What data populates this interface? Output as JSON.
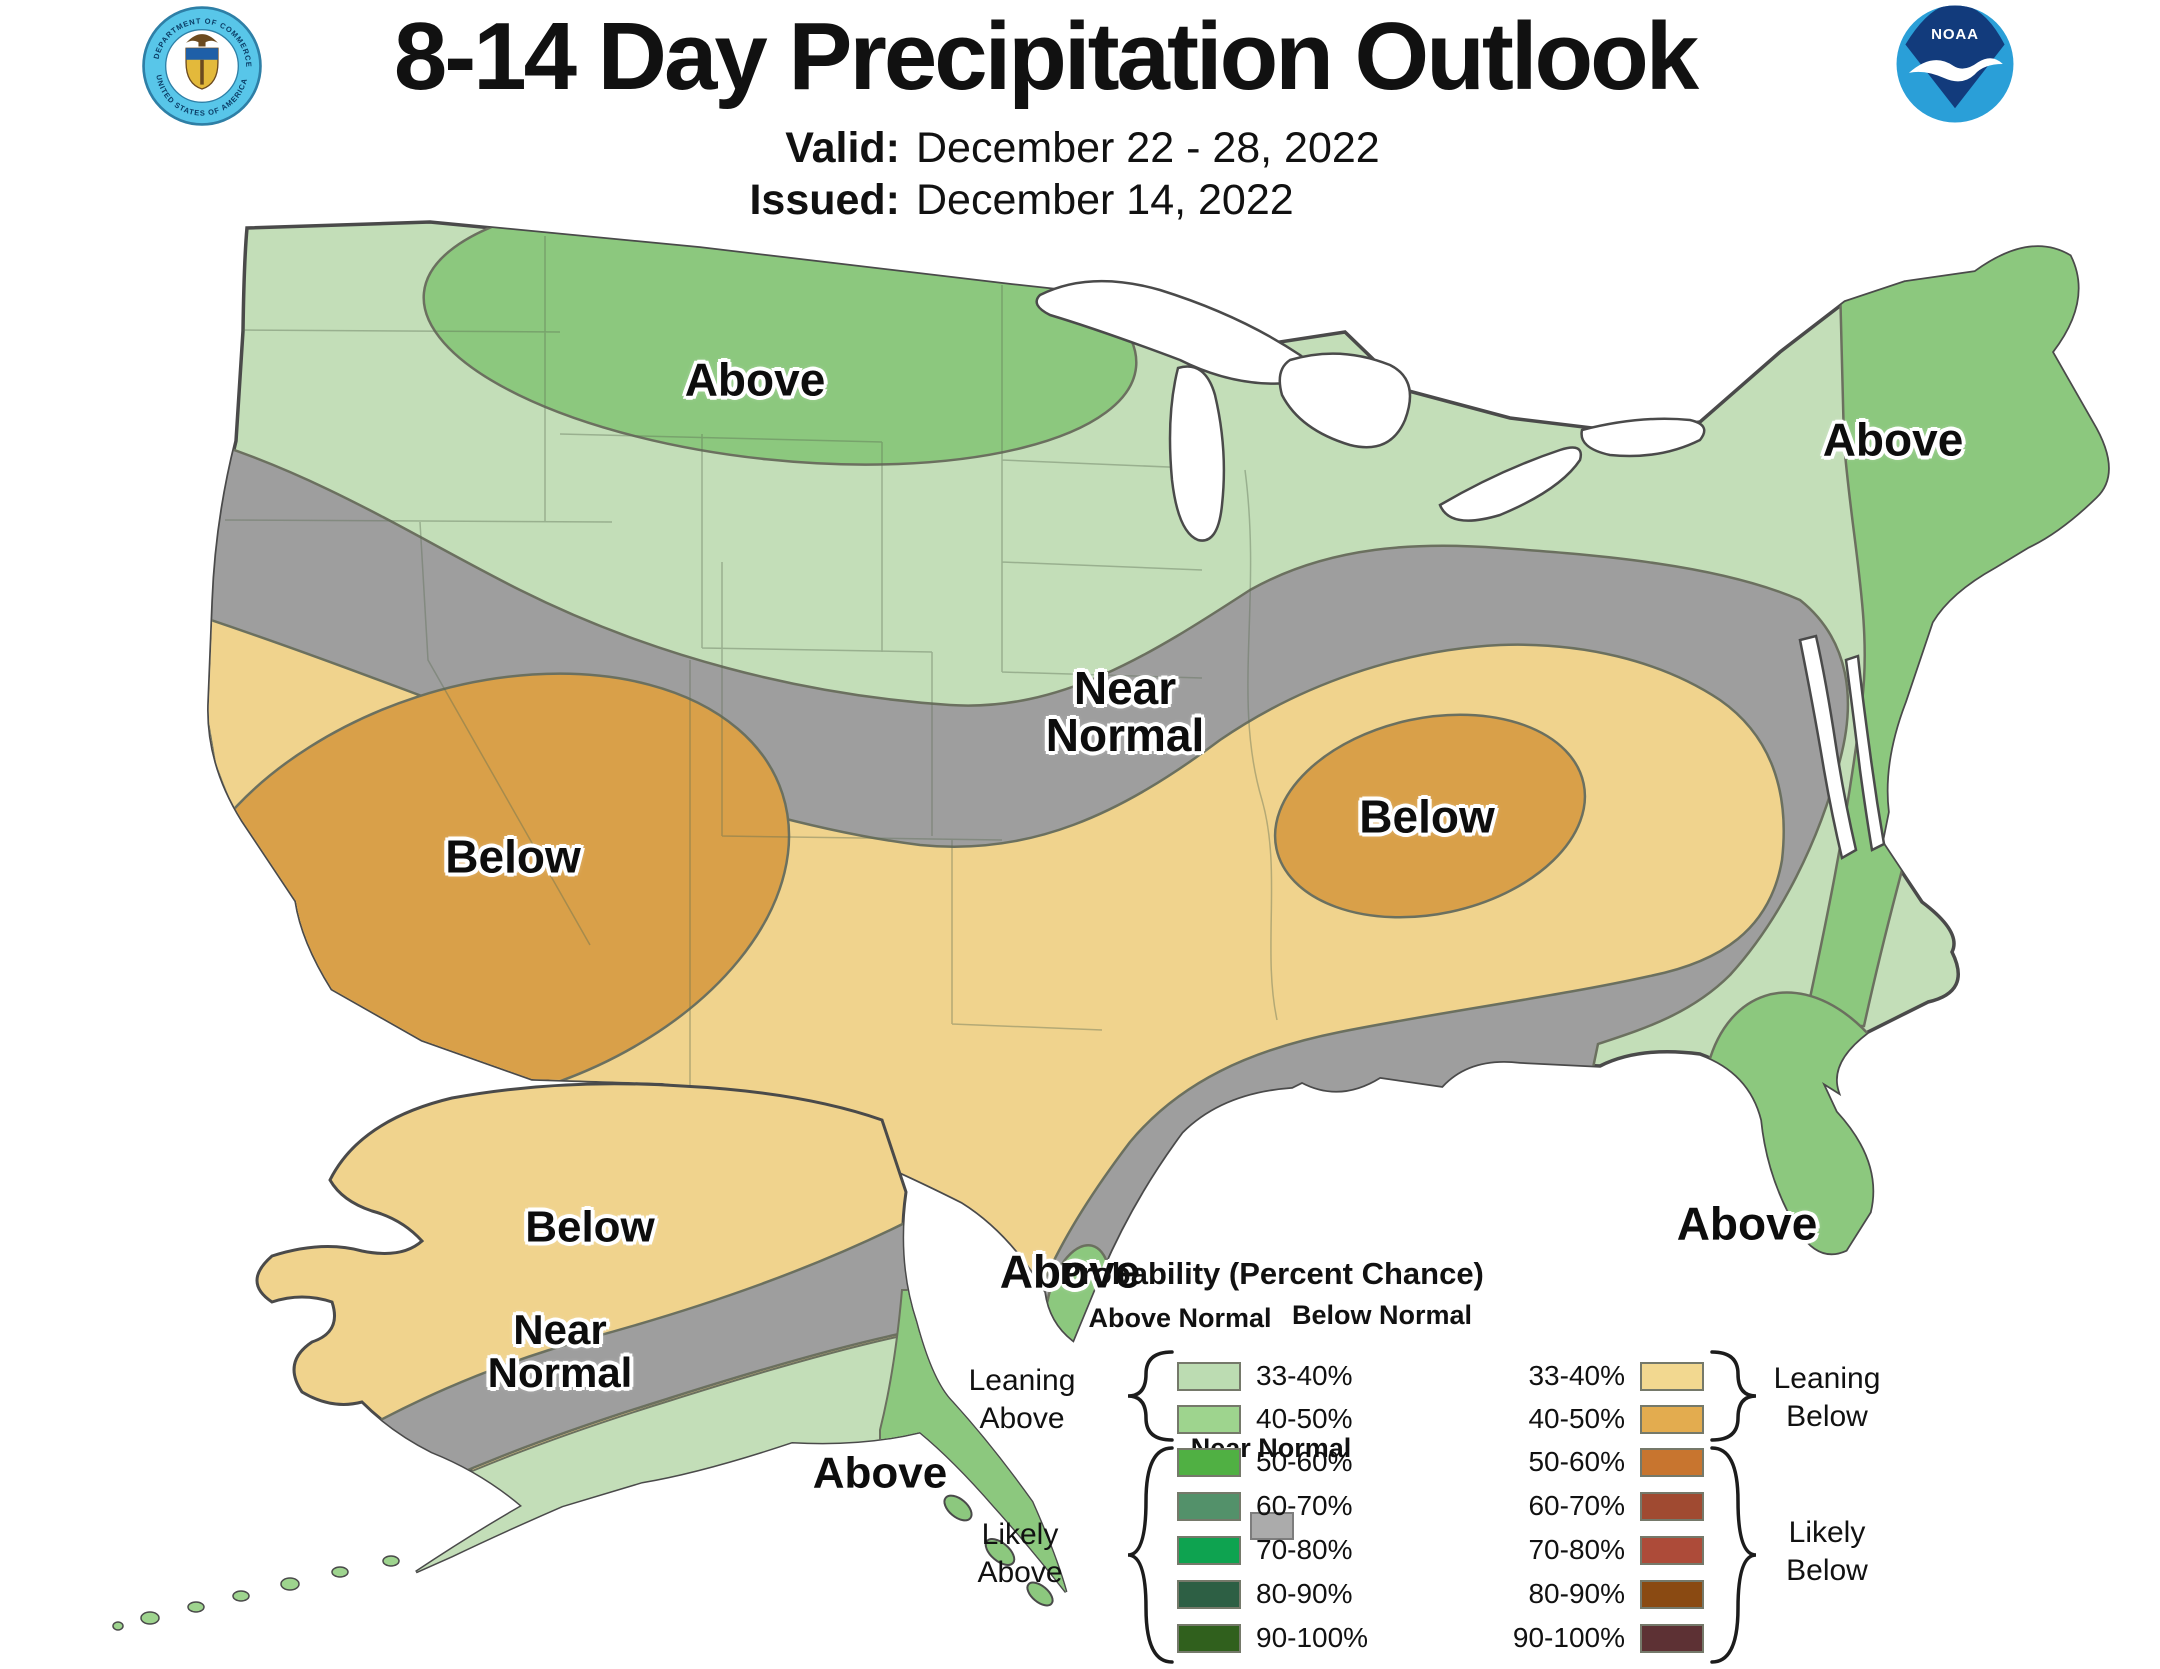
{
  "header": {
    "title": "8-14 Day Precipitation Outlook",
    "valid_label": "Valid:",
    "valid_value": "December 22 - 28, 2022",
    "issued_label": "Issued:",
    "issued_value": "December 14, 2022"
  },
  "logos": {
    "noaa_text": "NOAA",
    "doc_ring_top": "DEPARTMENT OF COMMERCE",
    "doc_ring_bottom": "UNITED STATES OF AMERICA"
  },
  "map_labels": {
    "northwest_above": "Above",
    "northeast_above": "Above",
    "central_near_normal": "Near Normal",
    "west_below": "Below",
    "midsouth_below": "Below",
    "south_texas_above": "Above",
    "florida_above": "Above",
    "alaska_below": "Below",
    "alaska_near_normal": "Near Normal",
    "alaska_above": "Above"
  },
  "legend": {
    "title": "Probability (Percent Chance)",
    "above_header": "Above Normal",
    "below_header": "Below Normal",
    "near_normal_label": "Near Normal",
    "leaning_above": "Leaning Above",
    "likely_above": "Likely Above",
    "leaning_below": "Leaning Below",
    "likely_below": "Likely Below",
    "ranges": [
      "33-40%",
      "40-50%",
      "50-60%",
      "60-70%",
      "70-80%",
      "80-90%",
      "90-100%"
    ],
    "above_colors": [
      "#bcdcb2",
      "#9ed48e",
      "#50b043",
      "#53916a",
      "#0ea350",
      "#2d5f44",
      "#30601d"
    ],
    "below_colors": [
      "#f2d890",
      "#e3ac4f",
      "#c8752f",
      "#a04a31",
      "#ad4b39",
      "#8a4a12",
      "#5d3134"
    ],
    "near_normal_color": "#ababab"
  },
  "map_colors": {
    "above_33_40": "#c3deb8",
    "above_40_50": "#8cc87e",
    "below_33_40": "#f0d38d",
    "below_40_50": "#d9a049",
    "near_normal": "#9e9e9e",
    "outline": "#4a4a4a",
    "region_edge": "#6b705f",
    "noaa_navy": "#123b7c",
    "noaa_blue": "#2a9fd8",
    "doc_blue": "#58c6e9"
  }
}
